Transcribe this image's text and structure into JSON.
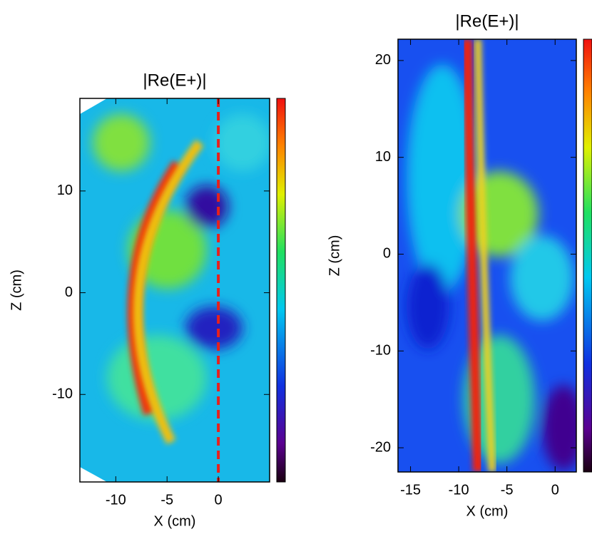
{
  "chart_data": [
    {
      "type": "heatmap",
      "title": "|Re(E+)|",
      "xlabel": "X (cm)",
      "ylabel": "Z (cm)",
      "xlim": [
        -13.5,
        5
      ],
      "ylim": [
        -18.6,
        19.1
      ],
      "xticks": [
        -10,
        -5,
        0
      ],
      "yticks": [
        -10,
        0,
        10
      ],
      "marker_line_x": 0,
      "marker_line_color": "#e8201c"
    },
    {
      "type": "heatmap",
      "title": "|Re(E+)|",
      "xlabel": "X (cm)",
      "ylabel": "Z (cm)",
      "xlim": [
        -16.3,
        2.2
      ],
      "ylim": [
        -22.5,
        22.2
      ],
      "xticks": [
        -15,
        -10,
        -5,
        0
      ],
      "yticks": [
        -20,
        -10,
        0,
        10,
        20
      ]
    }
  ]
}
